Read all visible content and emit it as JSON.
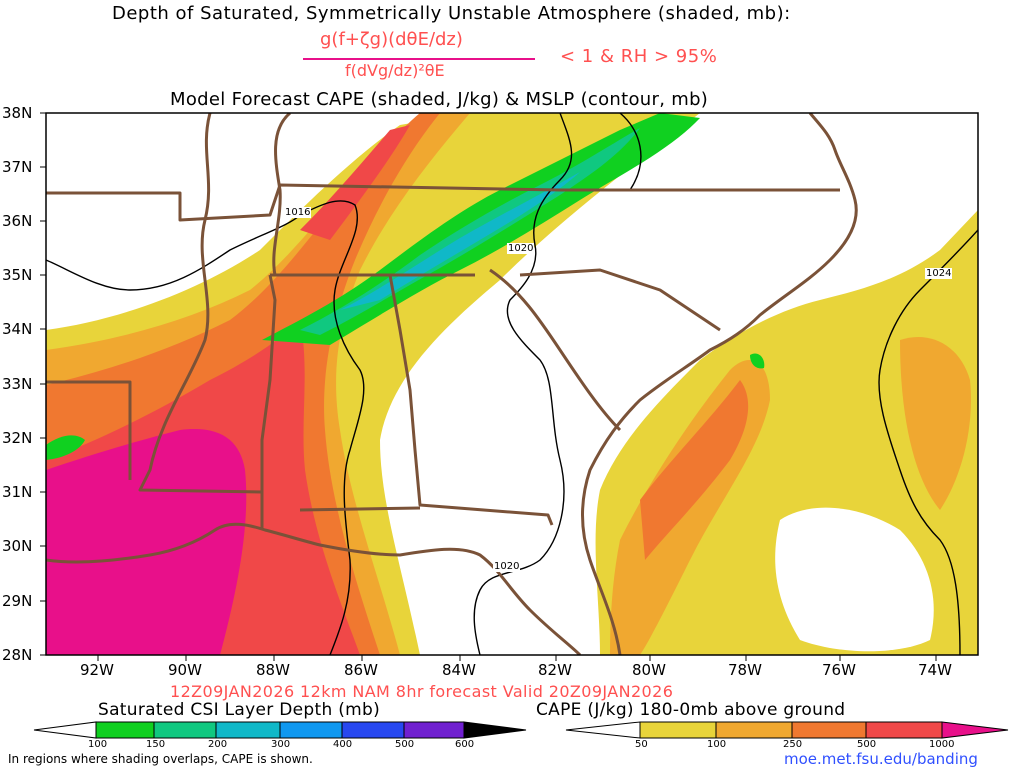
{
  "header": {
    "line1": "Depth of Saturated, Symmetrically Unstable Atmosphere (shaded, mb):",
    "numerator": "g(f+ζg)(dθE/dz)",
    "denominator": "f(dVg/dz)²θE",
    "condition": "< 1 & RH > 95%",
    "line3": "Model Forecast CAPE (shaded, J/kg) & MSLP (contour, mb)"
  },
  "axes": {
    "lat_labels": [
      "38N",
      "37N",
      "36N",
      "35N",
      "34N",
      "33N",
      "32N",
      "31N",
      "30N",
      "29N",
      "28N"
    ],
    "lon_labels": [
      "92W",
      "90W",
      "88W",
      "86W",
      "84W",
      "82W",
      "80W",
      "78W",
      "76W",
      "74W"
    ]
  },
  "contours": {
    "labels": [
      "1016",
      "1020",
      "1024",
      "1020"
    ]
  },
  "footer": {
    "valid": "12Z09JAN2026 12km NAM 8hr forecast Valid 20Z09JAN2026",
    "csi_title": "Saturated CSI Layer Depth (mb)",
    "cape_title": "CAPE (J/kg) 180-0mb above ground",
    "csi_ticks": [
      "100",
      "150",
      "200",
      "300",
      "400",
      "500",
      "600"
    ],
    "cape_ticks": [
      "50",
      "100",
      "250",
      "500",
      "1000"
    ],
    "note": "In regions where shading overlaps, CAPE is shown.",
    "url": "moe.met.fsu.edu/banding"
  },
  "colors": {
    "cape": [
      "#e8d43a",
      "#f0a830",
      "#f07830",
      "#f04848",
      "#e8108a"
    ],
    "csi": [
      "#10d020",
      "#10c880",
      "#10b8c8",
      "#1098f0",
      "#2848f0",
      "#7020d0",
      "#000000"
    ],
    "borders": "#7a5238"
  }
}
